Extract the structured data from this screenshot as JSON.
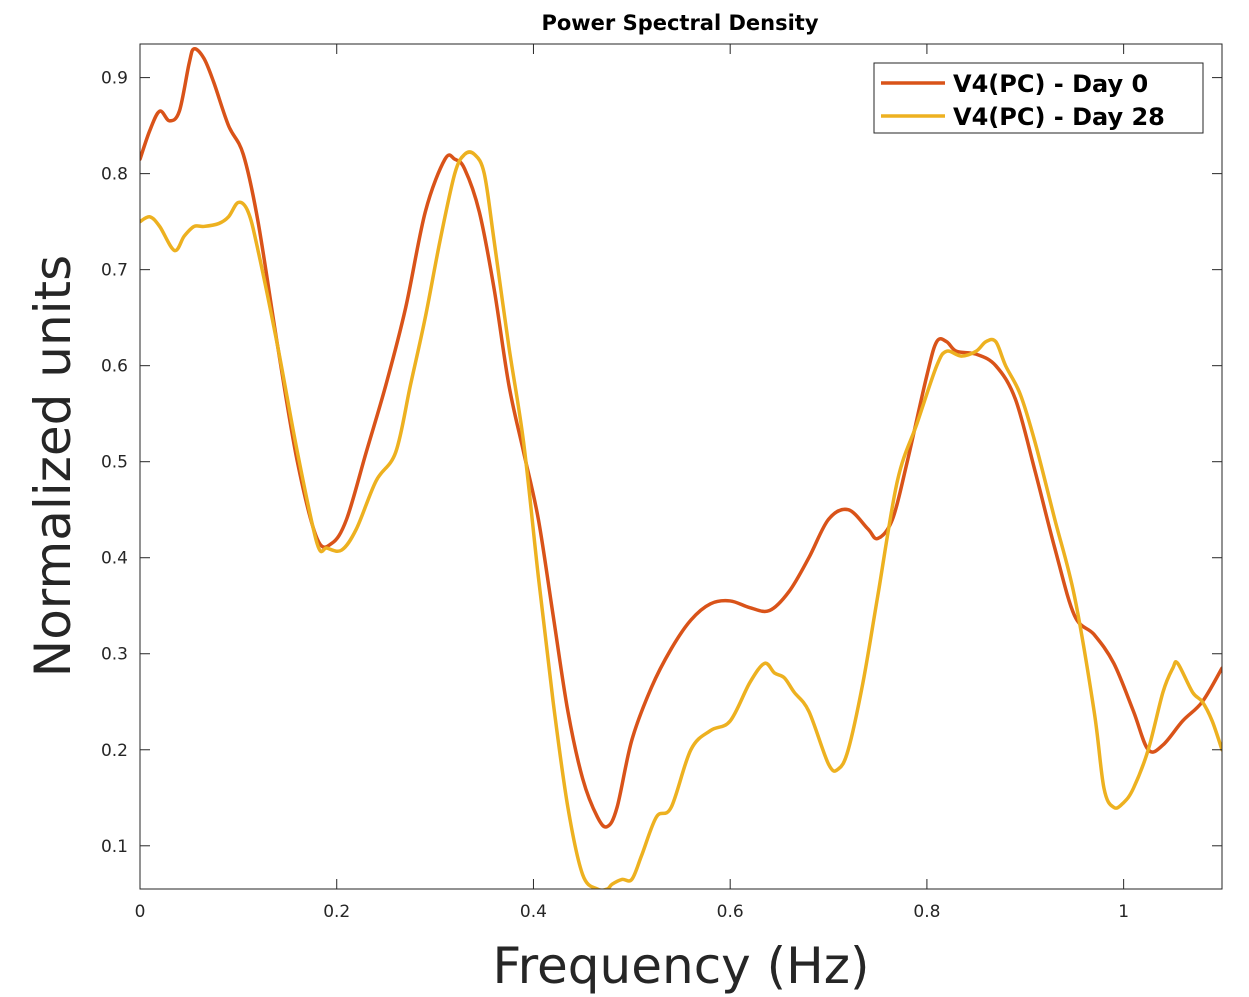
{
  "chart_data": {
    "type": "line",
    "title": "Power Spectral Density",
    "xlabel": "Frequency (Hz)",
    "ylabel": "Normalized units",
    "xlim": [
      0,
      1.1
    ],
    "ylim": [
      0.055,
      0.935
    ],
    "xticks": [
      0,
      0.2,
      0.4,
      0.6,
      0.8,
      1
    ],
    "xtick_labels": [
      "0",
      "0.2",
      "0.4",
      "0.6",
      "0.8",
      "1"
    ],
    "yticks": [
      0.1,
      0.2,
      0.3,
      0.4,
      0.5,
      0.6,
      0.7,
      0.8,
      0.9
    ],
    "ytick_labels": [
      "0.1",
      "0.2",
      "0.3",
      "0.4",
      "0.5",
      "0.6",
      "0.7",
      "0.8",
      "0.9"
    ],
    "grid": false,
    "legend_position": "top-right",
    "series": [
      {
        "name": "V4(PC) - Day 0",
        "color": "#D95319",
        "x": [
          0,
          0.01,
          0.02,
          0.03,
          0.04,
          0.05,
          0.055,
          0.065,
          0.075,
          0.09,
          0.105,
          0.12,
          0.14,
          0.16,
          0.18,
          0.195,
          0.21,
          0.23,
          0.25,
          0.27,
          0.29,
          0.31,
          0.32,
          0.33,
          0.345,
          0.36,
          0.375,
          0.39,
          0.405,
          0.42,
          0.435,
          0.45,
          0.465,
          0.475,
          0.485,
          0.5,
          0.52,
          0.54,
          0.56,
          0.58,
          0.6,
          0.62,
          0.64,
          0.66,
          0.68,
          0.7,
          0.72,
          0.74,
          0.75,
          0.765,
          0.78,
          0.8,
          0.81,
          0.82,
          0.83,
          0.85,
          0.87,
          0.89,
          0.91,
          0.93,
          0.95,
          0.97,
          0.99,
          1.01,
          1.025,
          1.04,
          1.06,
          1.08,
          1.1
        ],
        "y": [
          0.815,
          0.845,
          0.865,
          0.855,
          0.865,
          0.915,
          0.93,
          0.92,
          0.895,
          0.85,
          0.82,
          0.75,
          0.62,
          0.5,
          0.42,
          0.415,
          0.44,
          0.51,
          0.58,
          0.66,
          0.76,
          0.815,
          0.815,
          0.805,
          0.76,
          0.68,
          0.58,
          0.51,
          0.44,
          0.34,
          0.24,
          0.17,
          0.13,
          0.12,
          0.14,
          0.21,
          0.265,
          0.305,
          0.335,
          0.352,
          0.355,
          0.348,
          0.345,
          0.365,
          0.4,
          0.44,
          0.45,
          0.43,
          0.42,
          0.44,
          0.5,
          0.59,
          0.625,
          0.625,
          0.615,
          0.612,
          0.6,
          0.565,
          0.49,
          0.41,
          0.34,
          0.32,
          0.29,
          0.24,
          0.2,
          0.205,
          0.23,
          0.25,
          0.285
        ]
      },
      {
        "name": "V4(PC) - Day 28",
        "color": "#EDB120",
        "x": [
          0,
          0.01,
          0.02,
          0.035,
          0.045,
          0.055,
          0.065,
          0.08,
          0.09,
          0.1,
          0.11,
          0.12,
          0.14,
          0.16,
          0.18,
          0.19,
          0.205,
          0.22,
          0.24,
          0.26,
          0.275,
          0.29,
          0.305,
          0.32,
          0.33,
          0.34,
          0.35,
          0.36,
          0.375,
          0.39,
          0.405,
          0.42,
          0.435,
          0.45,
          0.465,
          0.475,
          0.48,
          0.49,
          0.5,
          0.51,
          0.525,
          0.54,
          0.56,
          0.58,
          0.6,
          0.62,
          0.635,
          0.645,
          0.655,
          0.665,
          0.68,
          0.7,
          0.71,
          0.72,
          0.735,
          0.75,
          0.77,
          0.79,
          0.81,
          0.82,
          0.835,
          0.85,
          0.86,
          0.87,
          0.88,
          0.895,
          0.91,
          0.93,
          0.95,
          0.97,
          0.98,
          0.99,
          1.0,
          1.01,
          1.025,
          1.04,
          1.05,
          1.055,
          1.07,
          1.08,
          1.09,
          1.1
        ],
        "y": [
          0.75,
          0.755,
          0.745,
          0.72,
          0.735,
          0.745,
          0.745,
          0.748,
          0.755,
          0.77,
          0.76,
          0.72,
          0.62,
          0.51,
          0.415,
          0.41,
          0.408,
          0.43,
          0.48,
          0.51,
          0.58,
          0.65,
          0.73,
          0.8,
          0.82,
          0.82,
          0.8,
          0.73,
          0.62,
          0.52,
          0.38,
          0.25,
          0.14,
          0.07,
          0.055,
          0.055,
          0.06,
          0.065,
          0.065,
          0.09,
          0.13,
          0.14,
          0.2,
          0.22,
          0.23,
          0.27,
          0.29,
          0.28,
          0.275,
          0.26,
          0.24,
          0.185,
          0.18,
          0.2,
          0.27,
          0.36,
          0.48,
          0.54,
          0.6,
          0.615,
          0.61,
          0.615,
          0.625,
          0.625,
          0.6,
          0.57,
          0.52,
          0.44,
          0.36,
          0.24,
          0.16,
          0.14,
          0.145,
          0.16,
          0.2,
          0.26,
          0.285,
          0.29,
          0.26,
          0.25,
          0.23,
          0.2
        ]
      }
    ]
  }
}
